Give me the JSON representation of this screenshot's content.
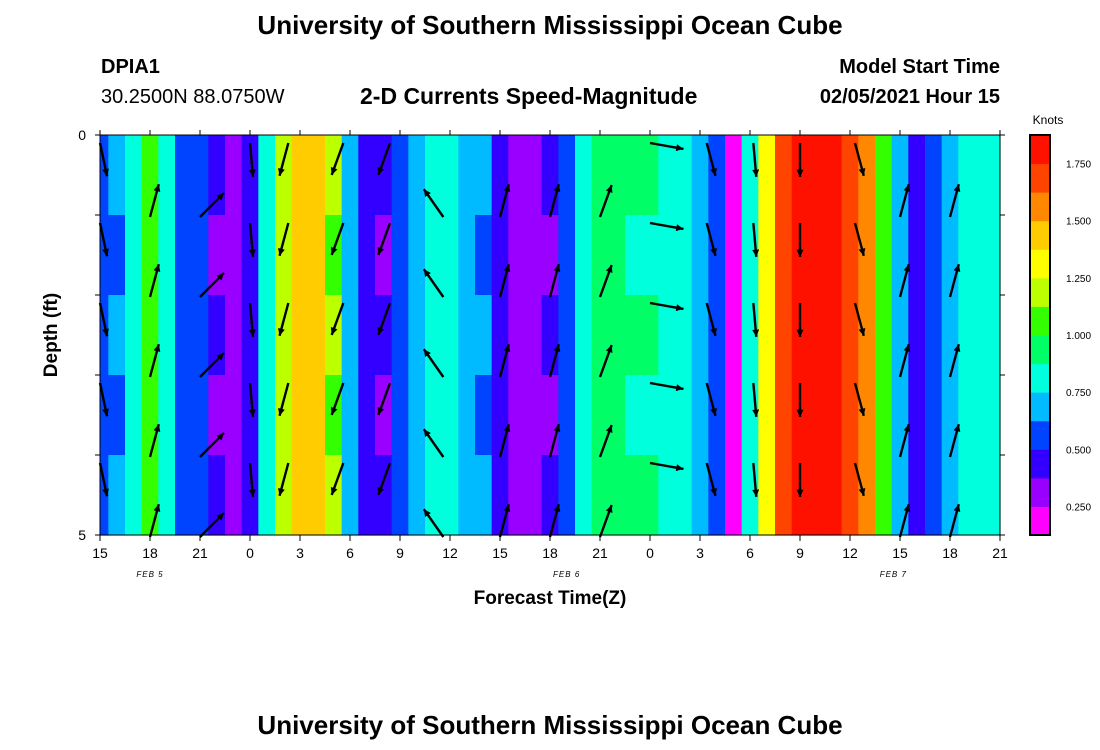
{
  "header": {
    "title": "University of Southern Mississippi Ocean Cube",
    "station": "DPIA1",
    "location": "30.2500N 88.0750W",
    "chart_title": "2-D Currents Speed-Magnitude",
    "model_start_label": "Model Start Time",
    "model_start_value": "02/05/2021 Hour 15"
  },
  "footer": {
    "title": "University of Southern Mississippi Ocean Cube"
  },
  "colorbar": {
    "unit_label": "Knots",
    "ticks": [
      "1.750",
      "1.500",
      "1.250",
      "1.000",
      "0.750",
      "0.500",
      "0.250"
    ],
    "tick_values": [
      1.75,
      1.5,
      1.25,
      1.0,
      0.75,
      0.5,
      0.25
    ],
    "range": [
      0.125,
      1.875
    ],
    "colors": [
      "#ff00ff",
      "#9900ff",
      "#3300ff",
      "#0044ff",
      "#00bbff",
      "#00ffdd",
      "#00ff66",
      "#33ff00",
      "#bbff00",
      "#ffff00",
      "#ffcc00",
      "#ff8800",
      "#ff4400",
      "#ff1100"
    ]
  },
  "chart_data": {
    "type": "heatmap",
    "title": "2-D Currents Speed-Magnitude",
    "xlabel": "Forecast Time(Z)",
    "ylabel": "Depth (ft)",
    "x_tick_labels": [
      "15",
      "18",
      "21",
      "0",
      "3",
      "6",
      "9",
      "12",
      "15",
      "18",
      "21",
      "0",
      "3",
      "6",
      "9",
      "12",
      "15",
      "18",
      "21"
    ],
    "date_labels": [
      "FEB 5",
      "FEB 6",
      "FEB 7"
    ],
    "y_tick_labels": [
      "0",
      "5"
    ],
    "ylim": [
      0,
      5
    ],
    "depths_ft": [
      0.5,
      1.5,
      2.5,
      3.5,
      4.5
    ],
    "times_hours": [
      0,
      1,
      2,
      3,
      4,
      5,
      6,
      7,
      8,
      9,
      10,
      11,
      12,
      13,
      14,
      15,
      16,
      17,
      18,
      19,
      20,
      21,
      22,
      23,
      24,
      25,
      26,
      27,
      28,
      29,
      30,
      31,
      32,
      33,
      34,
      35,
      36,
      37,
      38,
      39,
      40,
      41,
      42,
      43,
      44,
      45,
      46,
      47,
      48,
      49,
      50,
      51,
      52,
      53,
      54
    ],
    "speed_knots": [
      0.55,
      0.6,
      0.75,
      1.0,
      0.8,
      0.55,
      0.5,
      0.35,
      0.3,
      0.4,
      0.75,
      1.2,
      1.45,
      1.4,
      1.1,
      0.7,
      0.45,
      0.35,
      0.5,
      0.7,
      0.75,
      0.75,
      0.7,
      0.6,
      0.45,
      0.3,
      0.25,
      0.35,
      0.55,
      0.8,
      0.95,
      0.9,
      0.85,
      0.85,
      0.8,
      0.75,
      0.7,
      0.5,
      0.15,
      0.8,
      1.3,
      1.7,
      1.85,
      1.85,
      1.8,
      1.7,
      1.5,
      1.0,
      0.65,
      0.4,
      0.5,
      0.7,
      0.8,
      0.8,
      0.8
    ],
    "arrow_rows_ft": [
      0.1,
      0.6,
      1.1,
      1.6,
      2.1,
      2.6,
      3.1,
      3.6,
      4.1,
      4.6
    ],
    "arrows": [
      {
        "t": 0,
        "dir": 168,
        "rows": "even"
      },
      {
        "t": 3,
        "dir": 15,
        "rows": "odd"
      },
      {
        "t": 6,
        "dir": 45,
        "rows": "odd"
      },
      {
        "t": 9,
        "dir": 175,
        "rows": "even"
      },
      {
        "t": 11.3,
        "dir": 195,
        "rows": "even"
      },
      {
        "t": 14.6,
        "dir": 200,
        "rows": "even"
      },
      {
        "t": 17.4,
        "dir": 200,
        "rows": "even"
      },
      {
        "t": 20.6,
        "dir": 325,
        "rows": "odd"
      },
      {
        "t": 24,
        "dir": 15,
        "rows": "odd"
      },
      {
        "t": 27,
        "dir": 15,
        "rows": "odd"
      },
      {
        "t": 30,
        "dir": 20,
        "rows": "odd"
      },
      {
        "t": 33,
        "dir": 100,
        "rows": "even"
      },
      {
        "t": 36.4,
        "dir": 165,
        "rows": "even"
      },
      {
        "t": 39.2,
        "dir": 175,
        "rows": "even"
      },
      {
        "t": 42,
        "dir": 180,
        "rows": "even"
      },
      {
        "t": 45.3,
        "dir": 165,
        "rows": "even"
      },
      {
        "t": 48,
        "dir": 15,
        "rows": "odd"
      },
      {
        "t": 51,
        "dir": 15,
        "rows": "odd"
      }
    ]
  }
}
